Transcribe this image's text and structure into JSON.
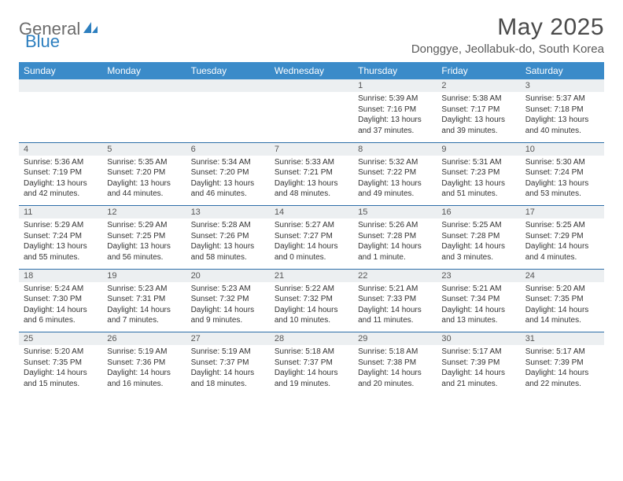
{
  "brand": {
    "general": "General",
    "blue": "Blue"
  },
  "colors": {
    "header_bg": "#3b8bc9",
    "header_text": "#ffffff",
    "daynum_bg": "#eceff1",
    "row_border": "#2d6ea8",
    "text": "#333333",
    "title": "#4a4a4a",
    "logo_blue": "#2d7fbf"
  },
  "title": "May 2025",
  "location": "Donggye, Jeollabuk-do, South Korea",
  "weekdays": [
    "Sunday",
    "Monday",
    "Tuesday",
    "Wednesday",
    "Thursday",
    "Friday",
    "Saturday"
  ],
  "weeks": [
    [
      null,
      null,
      null,
      null,
      {
        "n": "1",
        "sr": "Sunrise: 5:39 AM",
        "ss": "Sunset: 7:16 PM",
        "d1": "Daylight: 13 hours",
        "d2": "and 37 minutes."
      },
      {
        "n": "2",
        "sr": "Sunrise: 5:38 AM",
        "ss": "Sunset: 7:17 PM",
        "d1": "Daylight: 13 hours",
        "d2": "and 39 minutes."
      },
      {
        "n": "3",
        "sr": "Sunrise: 5:37 AM",
        "ss": "Sunset: 7:18 PM",
        "d1": "Daylight: 13 hours",
        "d2": "and 40 minutes."
      }
    ],
    [
      {
        "n": "4",
        "sr": "Sunrise: 5:36 AM",
        "ss": "Sunset: 7:19 PM",
        "d1": "Daylight: 13 hours",
        "d2": "and 42 minutes."
      },
      {
        "n": "5",
        "sr": "Sunrise: 5:35 AM",
        "ss": "Sunset: 7:20 PM",
        "d1": "Daylight: 13 hours",
        "d2": "and 44 minutes."
      },
      {
        "n": "6",
        "sr": "Sunrise: 5:34 AM",
        "ss": "Sunset: 7:20 PM",
        "d1": "Daylight: 13 hours",
        "d2": "and 46 minutes."
      },
      {
        "n": "7",
        "sr": "Sunrise: 5:33 AM",
        "ss": "Sunset: 7:21 PM",
        "d1": "Daylight: 13 hours",
        "d2": "and 48 minutes."
      },
      {
        "n": "8",
        "sr": "Sunrise: 5:32 AM",
        "ss": "Sunset: 7:22 PM",
        "d1": "Daylight: 13 hours",
        "d2": "and 49 minutes."
      },
      {
        "n": "9",
        "sr": "Sunrise: 5:31 AM",
        "ss": "Sunset: 7:23 PM",
        "d1": "Daylight: 13 hours",
        "d2": "and 51 minutes."
      },
      {
        "n": "10",
        "sr": "Sunrise: 5:30 AM",
        "ss": "Sunset: 7:24 PM",
        "d1": "Daylight: 13 hours",
        "d2": "and 53 minutes."
      }
    ],
    [
      {
        "n": "11",
        "sr": "Sunrise: 5:29 AM",
        "ss": "Sunset: 7:24 PM",
        "d1": "Daylight: 13 hours",
        "d2": "and 55 minutes."
      },
      {
        "n": "12",
        "sr": "Sunrise: 5:29 AM",
        "ss": "Sunset: 7:25 PM",
        "d1": "Daylight: 13 hours",
        "d2": "and 56 minutes."
      },
      {
        "n": "13",
        "sr": "Sunrise: 5:28 AM",
        "ss": "Sunset: 7:26 PM",
        "d1": "Daylight: 13 hours",
        "d2": "and 58 minutes."
      },
      {
        "n": "14",
        "sr": "Sunrise: 5:27 AM",
        "ss": "Sunset: 7:27 PM",
        "d1": "Daylight: 14 hours",
        "d2": "and 0 minutes."
      },
      {
        "n": "15",
        "sr": "Sunrise: 5:26 AM",
        "ss": "Sunset: 7:28 PM",
        "d1": "Daylight: 14 hours",
        "d2": "and 1 minute."
      },
      {
        "n": "16",
        "sr": "Sunrise: 5:25 AM",
        "ss": "Sunset: 7:28 PM",
        "d1": "Daylight: 14 hours",
        "d2": "and 3 minutes."
      },
      {
        "n": "17",
        "sr": "Sunrise: 5:25 AM",
        "ss": "Sunset: 7:29 PM",
        "d1": "Daylight: 14 hours",
        "d2": "and 4 minutes."
      }
    ],
    [
      {
        "n": "18",
        "sr": "Sunrise: 5:24 AM",
        "ss": "Sunset: 7:30 PM",
        "d1": "Daylight: 14 hours",
        "d2": "and 6 minutes."
      },
      {
        "n": "19",
        "sr": "Sunrise: 5:23 AM",
        "ss": "Sunset: 7:31 PM",
        "d1": "Daylight: 14 hours",
        "d2": "and 7 minutes."
      },
      {
        "n": "20",
        "sr": "Sunrise: 5:23 AM",
        "ss": "Sunset: 7:32 PM",
        "d1": "Daylight: 14 hours",
        "d2": "and 9 minutes."
      },
      {
        "n": "21",
        "sr": "Sunrise: 5:22 AM",
        "ss": "Sunset: 7:32 PM",
        "d1": "Daylight: 14 hours",
        "d2": "and 10 minutes."
      },
      {
        "n": "22",
        "sr": "Sunrise: 5:21 AM",
        "ss": "Sunset: 7:33 PM",
        "d1": "Daylight: 14 hours",
        "d2": "and 11 minutes."
      },
      {
        "n": "23",
        "sr": "Sunrise: 5:21 AM",
        "ss": "Sunset: 7:34 PM",
        "d1": "Daylight: 14 hours",
        "d2": "and 13 minutes."
      },
      {
        "n": "24",
        "sr": "Sunrise: 5:20 AM",
        "ss": "Sunset: 7:35 PM",
        "d1": "Daylight: 14 hours",
        "d2": "and 14 minutes."
      }
    ],
    [
      {
        "n": "25",
        "sr": "Sunrise: 5:20 AM",
        "ss": "Sunset: 7:35 PM",
        "d1": "Daylight: 14 hours",
        "d2": "and 15 minutes."
      },
      {
        "n": "26",
        "sr": "Sunrise: 5:19 AM",
        "ss": "Sunset: 7:36 PM",
        "d1": "Daylight: 14 hours",
        "d2": "and 16 minutes."
      },
      {
        "n": "27",
        "sr": "Sunrise: 5:19 AM",
        "ss": "Sunset: 7:37 PM",
        "d1": "Daylight: 14 hours",
        "d2": "and 18 minutes."
      },
      {
        "n": "28",
        "sr": "Sunrise: 5:18 AM",
        "ss": "Sunset: 7:37 PM",
        "d1": "Daylight: 14 hours",
        "d2": "and 19 minutes."
      },
      {
        "n": "29",
        "sr": "Sunrise: 5:18 AM",
        "ss": "Sunset: 7:38 PM",
        "d1": "Daylight: 14 hours",
        "d2": "and 20 minutes."
      },
      {
        "n": "30",
        "sr": "Sunrise: 5:17 AM",
        "ss": "Sunset: 7:39 PM",
        "d1": "Daylight: 14 hours",
        "d2": "and 21 minutes."
      },
      {
        "n": "31",
        "sr": "Sunrise: 5:17 AM",
        "ss": "Sunset: 7:39 PM",
        "d1": "Daylight: 14 hours",
        "d2": "and 22 minutes."
      }
    ]
  ]
}
